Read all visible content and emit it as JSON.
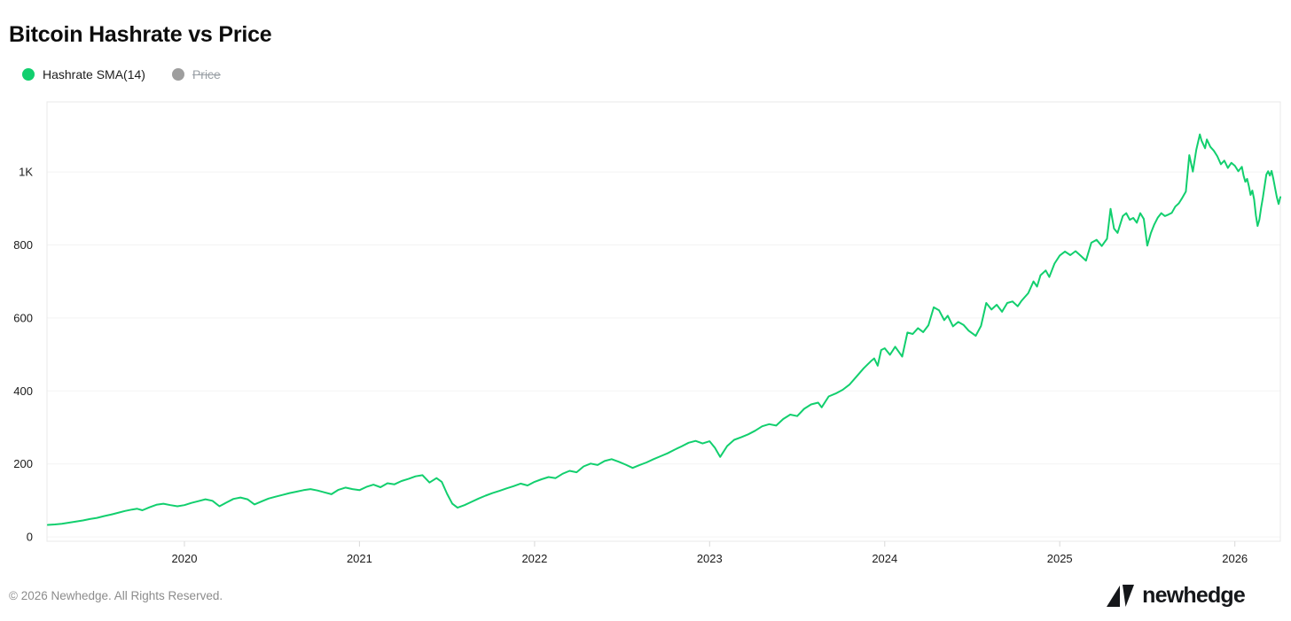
{
  "header": {
    "title": "Bitcoin Hashrate vs Price"
  },
  "legend": {
    "items": [
      {
        "label": "Hashrate SMA(14)",
        "color": "#12cf6e",
        "active": true
      },
      {
        "label": "Price",
        "color": "#9e9e9e",
        "active": false
      }
    ]
  },
  "footer": {
    "copyright": "© 2026 Newhedge. All Rights Reserved.",
    "brand": "newhedge"
  },
  "chart_data": {
    "type": "line",
    "title": "Bitcoin Hashrate vs Price",
    "xlabel": "",
    "ylabel": "",
    "xlim": [
      2019.215,
      2026.26
    ],
    "ylim": [
      -12,
      1192
    ],
    "grid": "horizontal",
    "legend_position": "top-left",
    "x_ticks": [
      {
        "v": 2020,
        "label": "2020"
      },
      {
        "v": 2021,
        "label": "2021"
      },
      {
        "v": 2022,
        "label": "2022"
      },
      {
        "v": 2023,
        "label": "2023"
      },
      {
        "v": 2024,
        "label": "2024"
      },
      {
        "v": 2025,
        "label": "2025"
      },
      {
        "v": 2026,
        "label": "2026"
      }
    ],
    "y_ticks": [
      {
        "v": 0,
        "label": "0"
      },
      {
        "v": 200,
        "label": "200"
      },
      {
        "v": 400,
        "label": "400"
      },
      {
        "v": 600,
        "label": "600"
      },
      {
        "v": 800,
        "label": "800"
      },
      {
        "v": 1000,
        "label": "1K"
      }
    ],
    "series": [
      {
        "name": "Hashrate SMA(14)",
        "color": "#12cf6e",
        "visible": true,
        "points": [
          [
            2019.22,
            33
          ],
          [
            2019.26,
            34
          ],
          [
            2019.3,
            36
          ],
          [
            2019.34,
            39
          ],
          [
            2019.38,
            42
          ],
          [
            2019.42,
            45
          ],
          [
            2019.46,
            49
          ],
          [
            2019.5,
            52
          ],
          [
            2019.54,
            57
          ],
          [
            2019.58,
            61
          ],
          [
            2019.62,
            66
          ],
          [
            2019.66,
            71
          ],
          [
            2019.7,
            75
          ],
          [
            2019.73,
            77
          ],
          [
            2019.76,
            73
          ],
          [
            2019.8,
            81
          ],
          [
            2019.84,
            88
          ],
          [
            2019.88,
            91
          ],
          [
            2019.92,
            87
          ],
          [
            2019.96,
            84
          ],
          [
            2020,
            87
          ],
          [
            2020.04,
            93
          ],
          [
            2020.08,
            98
          ],
          [
            2020.12,
            103
          ],
          [
            2020.16,
            99
          ],
          [
            2020.2,
            84
          ],
          [
            2020.24,
            94
          ],
          [
            2020.28,
            104
          ],
          [
            2020.32,
            108
          ],
          [
            2020.36,
            103
          ],
          [
            2020.4,
            89
          ],
          [
            2020.44,
            97
          ],
          [
            2020.48,
            105
          ],
          [
            2020.52,
            110
          ],
          [
            2020.56,
            115
          ],
          [
            2020.6,
            120
          ],
          [
            2020.64,
            124
          ],
          [
            2020.68,
            128
          ],
          [
            2020.72,
            131
          ],
          [
            2020.76,
            127
          ],
          [
            2020.8,
            122
          ],
          [
            2020.84,
            117
          ],
          [
            2020.88,
            129
          ],
          [
            2020.92,
            135
          ],
          [
            2020.96,
            131
          ],
          [
            2021,
            128
          ],
          [
            2021.04,
            137
          ],
          [
            2021.08,
            143
          ],
          [
            2021.12,
            136
          ],
          [
            2021.16,
            147
          ],
          [
            2021.2,
            144
          ],
          [
            2021.24,
            153
          ],
          [
            2021.28,
            159
          ],
          [
            2021.32,
            166
          ],
          [
            2021.36,
            169
          ],
          [
            2021.4,
            149
          ],
          [
            2021.44,
            161
          ],
          [
            2021.47,
            151
          ],
          [
            2021.5,
            118
          ],
          [
            2021.53,
            91
          ],
          [
            2021.56,
            80
          ],
          [
            2021.6,
            87
          ],
          [
            2021.64,
            96
          ],
          [
            2021.68,
            105
          ],
          [
            2021.72,
            113
          ],
          [
            2021.76,
            120
          ],
          [
            2021.8,
            126
          ],
          [
            2021.84,
            133
          ],
          [
            2021.88,
            139
          ],
          [
            2021.92,
            146
          ],
          [
            2021.96,
            141
          ],
          [
            2022,
            151
          ],
          [
            2022.04,
            158
          ],
          [
            2022.08,
            164
          ],
          [
            2022.12,
            161
          ],
          [
            2022.16,
            173
          ],
          [
            2022.2,
            181
          ],
          [
            2022.24,
            177
          ],
          [
            2022.28,
            193
          ],
          [
            2022.32,
            201
          ],
          [
            2022.36,
            197
          ],
          [
            2022.4,
            208
          ],
          [
            2022.44,
            213
          ],
          [
            2022.48,
            206
          ],
          [
            2022.52,
            198
          ],
          [
            2022.56,
            189
          ],
          [
            2022.6,
            197
          ],
          [
            2022.64,
            204
          ],
          [
            2022.68,
            213
          ],
          [
            2022.72,
            221
          ],
          [
            2022.76,
            229
          ],
          [
            2022.8,
            239
          ],
          [
            2022.84,
            248
          ],
          [
            2022.88,
            258
          ],
          [
            2022.92,
            263
          ],
          [
            2022.96,
            256
          ],
          [
            2023,
            262
          ],
          [
            2023.03,
            244
          ],
          [
            2023.06,
            219
          ],
          [
            2023.1,
            249
          ],
          [
            2023.14,
            266
          ],
          [
            2023.18,
            273
          ],
          [
            2023.22,
            281
          ],
          [
            2023.26,
            291
          ],
          [
            2023.3,
            303
          ],
          [
            2023.34,
            309
          ],
          [
            2023.38,
            305
          ],
          [
            2023.42,
            323
          ],
          [
            2023.46,
            335
          ],
          [
            2023.5,
            331
          ],
          [
            2023.54,
            351
          ],
          [
            2023.58,
            363
          ],
          [
            2023.62,
            368
          ],
          [
            2023.64,
            355
          ],
          [
            2023.68,
            385
          ],
          [
            2023.72,
            393
          ],
          [
            2023.76,
            403
          ],
          [
            2023.8,
            418
          ],
          [
            2023.84,
            440
          ],
          [
            2023.88,
            462
          ],
          [
            2023.92,
            481
          ],
          [
            2023.94,
            489
          ],
          [
            2023.96,
            469
          ],
          [
            2023.98,
            512
          ],
          [
            2024,
            517
          ],
          [
            2024.03,
            499
          ],
          [
            2024.06,
            521
          ],
          [
            2024.1,
            494
          ],
          [
            2024.13,
            560
          ],
          [
            2024.16,
            556
          ],
          [
            2024.19,
            572
          ],
          [
            2024.22,
            561
          ],
          [
            2024.25,
            580
          ],
          [
            2024.28,
            629
          ],
          [
            2024.31,
            621
          ],
          [
            2024.34,
            594
          ],
          [
            2024.36,
            606
          ],
          [
            2024.39,
            577
          ],
          [
            2024.42,
            589
          ],
          [
            2024.45,
            581
          ],
          [
            2024.48,
            565
          ],
          [
            2024.52,
            551
          ],
          [
            2024.55,
            578
          ],
          [
            2024.58,
            641
          ],
          [
            2024.61,
            623
          ],
          [
            2024.64,
            636
          ],
          [
            2024.67,
            617
          ],
          [
            2024.7,
            641
          ],
          [
            2024.73,
            645
          ],
          [
            2024.76,
            632
          ],
          [
            2024.78,
            646
          ],
          [
            2024.82,
            668
          ],
          [
            2024.85,
            700
          ],
          [
            2024.87,
            686
          ],
          [
            2024.89,
            717
          ],
          [
            2024.92,
            730
          ],
          [
            2024.94,
            712
          ],
          [
            2024.97,
            749
          ],
          [
            2025,
            771
          ],
          [
            2025.03,
            782
          ],
          [
            2025.06,
            772
          ],
          [
            2025.09,
            783
          ],
          [
            2025.12,
            770
          ],
          [
            2025.15,
            757
          ],
          [
            2025.18,
            806
          ],
          [
            2025.21,
            814
          ],
          [
            2025.24,
            797
          ],
          [
            2025.27,
            817
          ],
          [
            2025.29,
            899
          ],
          [
            2025.31,
            845
          ],
          [
            2025.33,
            833
          ],
          [
            2025.36,
            879
          ],
          [
            2025.38,
            887
          ],
          [
            2025.4,
            869
          ],
          [
            2025.42,
            874
          ],
          [
            2025.44,
            861
          ],
          [
            2025.46,
            887
          ],
          [
            2025.48,
            871
          ],
          [
            2025.5,
            798
          ],
          [
            2025.52,
            832
          ],
          [
            2025.54,
            856
          ],
          [
            2025.56,
            875
          ],
          [
            2025.58,
            887
          ],
          [
            2025.6,
            879
          ],
          [
            2025.62,
            883
          ],
          [
            2025.64,
            888
          ],
          [
            2025.66,
            905
          ],
          [
            2025.68,
            914
          ],
          [
            2025.7,
            929
          ],
          [
            2025.72,
            946
          ],
          [
            2025.74,
            1046
          ],
          [
            2025.76,
            1001
          ],
          [
            2025.78,
            1061
          ],
          [
            2025.8,
            1103
          ],
          [
            2025.81,
            1086
          ],
          [
            2025.83,
            1065
          ],
          [
            2025.84,
            1089
          ],
          [
            2025.86,
            1069
          ],
          [
            2025.88,
            1058
          ],
          [
            2025.9,
            1043
          ],
          [
            2025.92,
            1021
          ],
          [
            2025.94,
            1031
          ],
          [
            2025.96,
            1011
          ],
          [
            2025.98,
            1025
          ],
          [
            2026,
            1017
          ],
          [
            2026.02,
            1002
          ],
          [
            2026.04,
            1014
          ],
          [
            2026.05,
            990
          ],
          [
            2026.06,
            973
          ],
          [
            2026.07,
            981
          ],
          [
            2026.08,
            961
          ],
          [
            2026.09,
            937
          ],
          [
            2026.1,
            949
          ],
          [
            2026.11,
            925
          ],
          [
            2026.12,
            881
          ],
          [
            2026.13,
            852
          ],
          [
            2026.14,
            869
          ],
          [
            2026.15,
            902
          ],
          [
            2026.16,
            930
          ],
          [
            2026.17,
            961
          ],
          [
            2026.18,
            993
          ],
          [
            2026.19,
            1002
          ],
          [
            2026.2,
            990
          ],
          [
            2026.21,
            1003
          ],
          [
            2026.22,
            981
          ],
          [
            2026.23,
            955
          ],
          [
            2026.24,
            930
          ],
          [
            2026.25,
            912
          ],
          [
            2026.26,
            931
          ]
        ]
      },
      {
        "name": "Price",
        "color": "#9e9e9e",
        "visible": false,
        "points": []
      }
    ],
    "style": {
      "plot_border_color": "#e9e9e9",
      "gridline_color": "#f3f3f3",
      "tick_mark_color": "#d8d8d8",
      "axis_label_color": "#1a1a1a",
      "line_width": 2
    }
  }
}
